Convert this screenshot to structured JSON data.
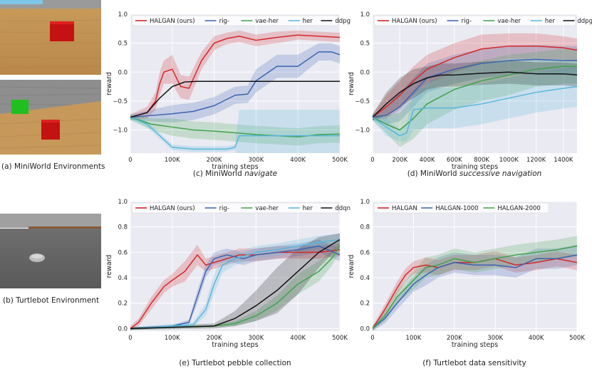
{
  "env_captions": {
    "miniworld": "(a) MiniWorld Environments",
    "turtlebot": "(b) Turtlebot Environment"
  },
  "colors": {
    "halgan": "#d62728",
    "rig": "#3a63b0",
    "vaeher": "#3fa24a",
    "her": "#56b7dc",
    "baseline": "#111111",
    "plot_bg": "#eaeaf2",
    "grid": "#ffffff"
  },
  "chart_data": [
    {
      "id": "c",
      "type": "line",
      "caption_prefix": "(c) MiniWorld ",
      "caption_italic": "navigate",
      "xlabel": "training steps",
      "ylabel": "reward",
      "xlim": [
        0,
        500000
      ],
      "ylim": [
        -1.4,
        1.0
      ],
      "xticks": [
        0,
        100000,
        200000,
        300000,
        400000,
        500000
      ],
      "xticklabels": [
        "0",
        "100K",
        "200K",
        "300K",
        "400K",
        "500K"
      ],
      "yticks": [
        -1.0,
        -0.5,
        0.0,
        0.5,
        1.0
      ],
      "yticklabels": [
        "−1.0",
        "−0.5",
        "0.0",
        "0.5",
        "1.0"
      ],
      "series": [
        {
          "name": "HALGAN (ours)",
          "color_key": "halgan",
          "x": [
            0,
            40000,
            60000,
            70000,
            80000,
            100000,
            120000,
            140000,
            170000,
            200000,
            230000,
            260000,
            300000,
            350000,
            400000,
            450000,
            500000
          ],
          "y": [
            -0.78,
            -0.7,
            -0.5,
            -0.2,
            0.0,
            0.05,
            -0.25,
            -0.28,
            0.2,
            0.5,
            0.58,
            0.62,
            0.55,
            0.6,
            0.64,
            0.62,
            0.6
          ],
          "band": [
            0.05,
            0.1,
            0.15,
            0.2,
            0.2,
            0.25,
            0.2,
            0.2,
            0.15,
            0.12,
            0.1,
            0.1,
            0.1,
            0.1,
            0.08,
            0.08,
            0.08
          ]
        },
        {
          "name": "rig-",
          "color_key": "rig",
          "x": [
            0,
            50000,
            100000,
            150000,
            200000,
            250000,
            280000,
            300000,
            350000,
            400000,
            450000,
            480000,
            500000
          ],
          "y": [
            -0.78,
            -0.75,
            -0.72,
            -0.68,
            -0.58,
            -0.4,
            -0.38,
            -0.15,
            0.1,
            0.1,
            0.35,
            0.35,
            0.3
          ],
          "band": [
            0.05,
            0.1,
            0.15,
            0.15,
            0.15,
            0.15,
            0.15,
            0.2,
            0.2,
            0.2,
            0.15,
            0.15,
            0.15
          ]
        },
        {
          "name": "vae-her",
          "color_key": "vaeher",
          "x": [
            0,
            50000,
            100000,
            150000,
            200000,
            250000,
            300000,
            350000,
            400000,
            450000,
            500000
          ],
          "y": [
            -0.78,
            -0.9,
            -0.95,
            -1.0,
            -1.02,
            -1.05,
            -1.08,
            -1.1,
            -1.12,
            -1.08,
            -1.07
          ],
          "band": [
            0.05,
            0.1,
            0.15,
            0.15,
            0.15,
            0.15,
            0.15,
            0.15,
            0.15,
            0.15,
            0.15
          ]
        },
        {
          "name": "her",
          "color_key": "her",
          "x": [
            0,
            40000,
            70000,
            100000,
            150000,
            200000,
            230000,
            250000,
            260000,
            300000,
            350000,
            400000,
            450000,
            500000
          ],
          "y": [
            -0.78,
            -0.9,
            -1.1,
            -1.3,
            -1.33,
            -1.33,
            -1.33,
            -1.3,
            -1.1,
            -1.1,
            -1.1,
            -1.1,
            -1.1,
            -1.1
          ],
          "band": [
            0.03,
            0.05,
            0.05,
            0.05,
            0.05,
            0.05,
            0.05,
            0.05,
            0.45,
            0.45,
            0.45,
            0.45,
            0.45,
            0.45
          ]
        },
        {
          "name": "ddpg",
          "color_key": "baseline",
          "x": [
            0,
            40000,
            70000,
            100000,
            130000,
            160000,
            200000,
            300000,
            400000,
            500000
          ],
          "y": [
            -0.78,
            -0.7,
            -0.45,
            -0.25,
            -0.17,
            -0.16,
            -0.16,
            -0.16,
            -0.16,
            -0.16
          ],
          "band": [
            0,
            0,
            0,
            0,
            0,
            0,
            0,
            0,
            0,
            0
          ]
        }
      ]
    },
    {
      "id": "d",
      "type": "line",
      "caption_prefix": "(d) MiniWorld ",
      "caption_italic": "successive navigation",
      "xlabel": "training steps",
      "ylabel": "reward",
      "xlim": [
        0,
        1500000
      ],
      "ylim": [
        -1.4,
        1.0
      ],
      "xticks": [
        0,
        200000,
        400000,
        600000,
        800000,
        1000000,
        1200000,
        1400000
      ],
      "xticklabels": [
        "0",
        "200K",
        "400K",
        "600K",
        "800K",
        "1000K",
        "1200K",
        "1400K"
      ],
      "yticks": [
        -1.0,
        -0.5,
        0.0,
        0.5,
        1.0
      ],
      "yticklabels": [
        "−1.0",
        "−0.5",
        "0.0",
        "0.5",
        "1.0"
      ],
      "series": [
        {
          "name": "HALGAN (ours)",
          "color_key": "halgan",
          "x": [
            0,
            100000,
            200000,
            300000,
            400000,
            600000,
            800000,
            1000000,
            1200000,
            1400000,
            1500000
          ],
          "y": [
            -0.78,
            -0.6,
            -0.4,
            -0.15,
            0.05,
            0.25,
            0.4,
            0.45,
            0.45,
            0.42,
            0.38
          ],
          "band": [
            0.05,
            0.2,
            0.25,
            0.25,
            0.25,
            0.25,
            0.25,
            0.22,
            0.22,
            0.2,
            0.2
          ]
        },
        {
          "name": "rig-",
          "color_key": "rig",
          "x": [
            0,
            100000,
            200000,
            300000,
            400000,
            600000,
            800000,
            1000000,
            1200000,
            1400000,
            1500000
          ],
          "y": [
            -0.78,
            -0.75,
            -0.6,
            -0.35,
            -0.1,
            0.05,
            0.15,
            0.2,
            0.22,
            0.2,
            0.2
          ],
          "band": [
            0.05,
            0.15,
            0.25,
            0.25,
            0.25,
            0.25,
            0.25,
            0.25,
            0.25,
            0.25,
            0.25
          ]
        },
        {
          "name": "vae-her",
          "color_key": "vaeher",
          "x": [
            0,
            100000,
            200000,
            300000,
            400000,
            600000,
            800000,
            1000000,
            1200000,
            1400000,
            1500000
          ],
          "y": [
            -0.78,
            -0.9,
            -1.0,
            -0.8,
            -0.55,
            -0.3,
            -0.15,
            -0.05,
            0.05,
            0.1,
            0.1
          ],
          "band": [
            0.05,
            0.15,
            0.3,
            0.35,
            0.35,
            0.35,
            0.35,
            0.35,
            0.3,
            0.3,
            0.3
          ]
        },
        {
          "name": "her",
          "color_key": "her",
          "x": [
            0,
            100000,
            200000,
            250000,
            300000,
            400000,
            600000,
            800000,
            1000000,
            1200000,
            1400000,
            1500000
          ],
          "y": [
            -0.78,
            -0.95,
            -1.1,
            -1.05,
            -0.65,
            -0.62,
            -0.62,
            -0.55,
            -0.45,
            -0.35,
            -0.28,
            -0.25
          ],
          "band": [
            0.05,
            0.15,
            0.1,
            0.15,
            0.35,
            0.35,
            0.35,
            0.35,
            0.35,
            0.35,
            0.35,
            0.35
          ]
        },
        {
          "name": "ddpg",
          "color_key": "baseline",
          "x": [
            0,
            100000,
            200000,
            300000,
            400000,
            500000,
            600000,
            800000,
            1000000,
            1200000,
            1400000,
            1500000
          ],
          "y": [
            -0.78,
            -0.55,
            -0.35,
            -0.2,
            -0.1,
            -0.05,
            -0.05,
            -0.02,
            0.0,
            -0.03,
            -0.03,
            -0.05
          ],
          "band": [
            0.05,
            0.2,
            0.25,
            0.25,
            0.2,
            0.2,
            0.2,
            0.2,
            0.2,
            0.2,
            0.2,
            0.2
          ]
        }
      ]
    },
    {
      "id": "e",
      "type": "line",
      "caption_prefix": "(e) Turtlebot pebble collection",
      "caption_italic": "",
      "xlabel": "training steps",
      "ylabel": "reward",
      "xlim": [
        0,
        500000
      ],
      "ylim": [
        -0.02,
        1.0
      ],
      "xticks": [
        0,
        100000,
        200000,
        300000,
        400000,
        500000
      ],
      "xticklabels": [
        "0",
        "100K",
        "200K",
        "300K",
        "400K",
        "500K"
      ],
      "yticks": [
        0.0,
        0.2,
        0.4,
        0.6,
        0.8,
        1.0
      ],
      "yticklabels": [
        "0.0",
        "0.2",
        "0.4",
        "0.6",
        "0.8",
        "1.0"
      ],
      "series": [
        {
          "name": "HALGAN (ours)",
          "color_key": "halgan",
          "x": [
            0,
            20000,
            50000,
            80000,
            100000,
            130000,
            160000,
            180000,
            200000,
            230000,
            260000,
            300000,
            350000,
            400000,
            450000,
            500000
          ],
          "y": [
            0.0,
            0.05,
            0.2,
            0.33,
            0.38,
            0.45,
            0.58,
            0.5,
            0.52,
            0.55,
            0.58,
            0.58,
            0.6,
            0.6,
            0.6,
            0.62
          ],
          "band": [
            0.02,
            0.03,
            0.05,
            0.05,
            0.05,
            0.08,
            0.08,
            0.05,
            0.05,
            0.05,
            0.05,
            0.05,
            0.05,
            0.05,
            0.05,
            0.05
          ]
        },
        {
          "name": "rig-",
          "color_key": "rig",
          "x": [
            0,
            100000,
            140000,
            160000,
            180000,
            200000,
            230000,
            270000,
            300000,
            350000,
            400000,
            450000,
            500000
          ],
          "y": [
            0.0,
            0.02,
            0.05,
            0.25,
            0.45,
            0.55,
            0.58,
            0.55,
            0.58,
            0.6,
            0.62,
            0.65,
            0.58
          ],
          "band": [
            0.01,
            0.01,
            0.02,
            0.05,
            0.05,
            0.05,
            0.05,
            0.05,
            0.05,
            0.05,
            0.05,
            0.05,
            0.05
          ]
        },
        {
          "name": "vae-her",
          "color_key": "vaeher",
          "x": [
            0,
            200000,
            250000,
            300000,
            350000,
            400000,
            450000,
            480000,
            500000
          ],
          "y": [
            0.0,
            0.02,
            0.04,
            0.1,
            0.2,
            0.35,
            0.45,
            0.55,
            0.65
          ],
          "band": [
            0.01,
            0.01,
            0.02,
            0.04,
            0.06,
            0.08,
            0.08,
            0.06,
            0.05
          ]
        },
        {
          "name": "her",
          "color_key": "her",
          "x": [
            0,
            150000,
            180000,
            200000,
            220000,
            250000,
            300000,
            350000,
            400000,
            450000,
            500000
          ],
          "y": [
            0.0,
            0.03,
            0.15,
            0.35,
            0.5,
            0.55,
            0.6,
            0.62,
            0.65,
            0.68,
            0.7
          ],
          "band": [
            0.01,
            0.02,
            0.05,
            0.08,
            0.06,
            0.05,
            0.05,
            0.05,
            0.05,
            0.05,
            0.05
          ]
        },
        {
          "name": "ddqn",
          "color_key": "baseline",
          "x": [
            0,
            200000,
            250000,
            300000,
            350000,
            400000,
            450000,
            500000
          ],
          "y": [
            0.0,
            0.02,
            0.08,
            0.18,
            0.3,
            0.45,
            0.6,
            0.7
          ],
          "band": [
            0.01,
            0.02,
            0.06,
            0.12,
            0.18,
            0.18,
            0.12,
            0.05
          ]
        }
      ]
    },
    {
      "id": "f",
      "type": "line",
      "caption_prefix": "(f) Turtlebot data sensitivity",
      "caption_italic": "",
      "xlabel": "training steps",
      "ylabel": "reward",
      "xlim": [
        0,
        500000
      ],
      "ylim": [
        -0.02,
        1.0
      ],
      "xticks": [
        0,
        100000,
        200000,
        300000,
        400000,
        500000
      ],
      "xticklabels": [
        "0",
        "100K",
        "200K",
        "300K",
        "400K",
        "500K"
      ],
      "yticks": [
        0.0,
        0.2,
        0.4,
        0.6,
        0.8,
        1.0
      ],
      "yticklabels": [
        "0.0",
        "0.2",
        "0.4",
        "0.6",
        "0.8",
        "1.0"
      ],
      "series": [
        {
          "name": "HALGAN",
          "color_key": "halgan",
          "x": [
            0,
            30000,
            60000,
            80000,
            100000,
            130000,
            160000,
            200000,
            250000,
            300000,
            350000,
            400000,
            450000,
            500000
          ],
          "y": [
            0.0,
            0.15,
            0.32,
            0.42,
            0.48,
            0.5,
            0.48,
            0.52,
            0.52,
            0.55,
            0.5,
            0.52,
            0.55,
            0.52
          ],
          "band": [
            0.02,
            0.04,
            0.05,
            0.05,
            0.05,
            0.06,
            0.06,
            0.06,
            0.06,
            0.06,
            0.06,
            0.06,
            0.06,
            0.06
          ]
        },
        {
          "name": "HALGAN-1000",
          "color_key": "rig",
          "x": [
            0,
            30000,
            60000,
            100000,
            130000,
            160000,
            200000,
            250000,
            300000,
            350000,
            400000,
            450000,
            500000
          ],
          "y": [
            0.0,
            0.08,
            0.2,
            0.35,
            0.42,
            0.48,
            0.52,
            0.5,
            0.5,
            0.48,
            0.55,
            0.55,
            0.58
          ],
          "band": [
            0.02,
            0.04,
            0.05,
            0.06,
            0.08,
            0.08,
            0.08,
            0.08,
            0.08,
            0.08,
            0.08,
            0.08,
            0.08
          ]
        },
        {
          "name": "HALGAN-2000",
          "color_key": "vaeher",
          "x": [
            0,
            30000,
            60000,
            100000,
            130000,
            160000,
            200000,
            250000,
            300000,
            350000,
            400000,
            450000,
            500000
          ],
          "y": [
            0.0,
            0.1,
            0.25,
            0.38,
            0.48,
            0.5,
            0.55,
            0.52,
            0.55,
            0.58,
            0.6,
            0.62,
            0.65
          ],
          "band": [
            0.02,
            0.04,
            0.05,
            0.07,
            0.08,
            0.08,
            0.08,
            0.08,
            0.08,
            0.08,
            0.08,
            0.08,
            0.08
          ]
        }
      ]
    }
  ]
}
